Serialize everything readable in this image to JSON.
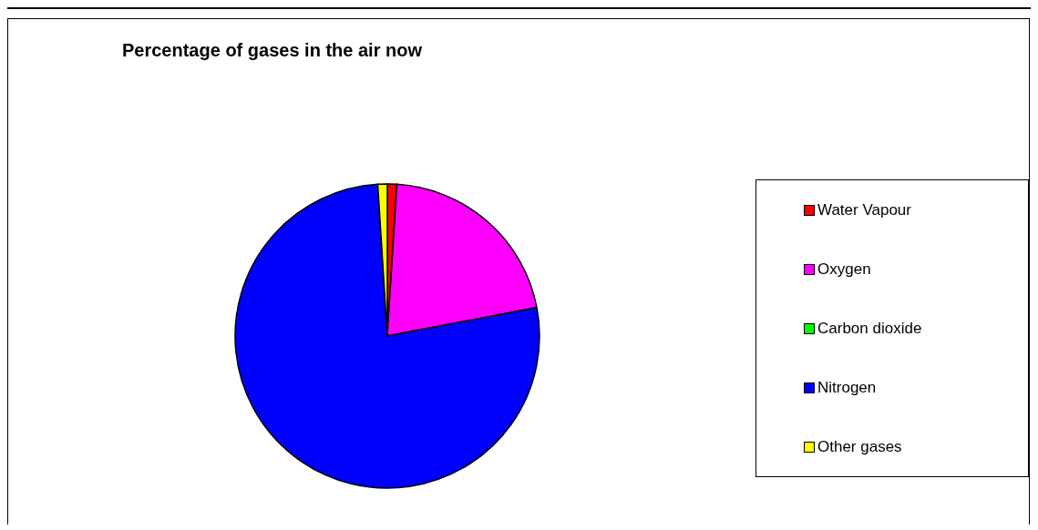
{
  "chart_data": {
    "type": "pie",
    "title": "Percentage of gases in the air now",
    "categories": [
      "Water Vapour",
      "Oxygen",
      "Carbon dioxide",
      "Nitrogen",
      "Other gases"
    ],
    "values": [
      1,
      21,
      null,
      77,
      1
    ],
    "colors": [
      "#ff0000",
      "#ff00ff",
      "#00ff00",
      "#0000ff",
      "#ffff00"
    ],
    "legend": "right"
  }
}
